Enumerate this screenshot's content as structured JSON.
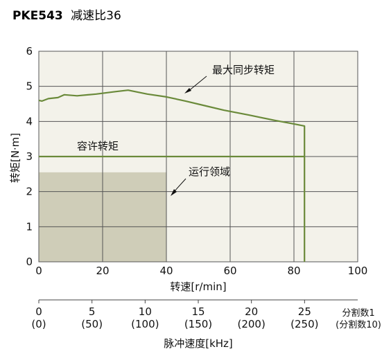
{
  "chart_data": {
    "type": "line",
    "title_model": "PKE543",
    "title_rest": "减速比36",
    "xlabel": "转速[r/min]",
    "ylabel": "转矩[N·m]",
    "xlim": [
      0,
      100
    ],
    "ylim": [
      0,
      6
    ],
    "x_ticks": [
      "0",
      "20",
      "40",
      "60",
      "80",
      "100"
    ],
    "y_ticks": [
      "0",
      "1",
      "2",
      "3",
      "4",
      "5",
      "6"
    ],
    "secondary_axis": {
      "label": "脉冲速度[kHz]",
      "ticks": [
        {
          "value": "0",
          "paren": "(0)"
        },
        {
          "value": "5",
          "paren": "(50)"
        },
        {
          "value": "10",
          "paren": "(100)"
        },
        {
          "value": "15",
          "paren": "(150)"
        },
        {
          "value": "20",
          "paren": "(200)"
        },
        {
          "value": "25",
          "paren": "(250)"
        }
      ],
      "note1": "分割数1",
      "note2": "(分割数10)"
    },
    "series": [
      {
        "name": "最大同步转矩",
        "x": [
          0,
          1,
          3,
          6,
          8,
          12,
          18,
          24,
          28,
          34,
          40,
          46,
          52,
          58,
          66,
          74,
          80,
          83.3,
          83.3
        ],
        "y": [
          4.6,
          4.58,
          4.65,
          4.68,
          4.76,
          4.73,
          4.78,
          4.85,
          4.89,
          4.78,
          4.7,
          4.58,
          4.45,
          4.32,
          4.18,
          4.03,
          3.93,
          3.87,
          0
        ],
        "color": "#6a8a3a"
      },
      {
        "name": "容许转矩",
        "x": [
          0,
          83.3
        ],
        "y": [
          3.0,
          3.0
        ],
        "color": "#6a8a3a"
      }
    ],
    "region": {
      "name": "运行领域",
      "x": [
        0,
        40
      ],
      "y": [
        0,
        2.55
      ],
      "color": "#cfcdb8"
    },
    "colors": {
      "plot_bg": "#f3f2ea",
      "grid": "#555555",
      "curve": "#6a8a3a"
    }
  }
}
